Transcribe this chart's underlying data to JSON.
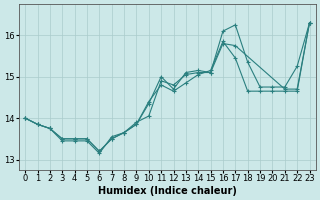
{
  "title": "",
  "xlabel": "Humidex (Indice chaleur)",
  "ylabel": "",
  "bg_color": "#cce8e8",
  "grid_color": "#aacccc",
  "line_color": "#2a7f7f",
  "xlim": [
    -0.5,
    23.5
  ],
  "ylim": [
    12.75,
    16.75
  ],
  "xticks": [
    0,
    1,
    2,
    3,
    4,
    5,
    6,
    7,
    8,
    9,
    10,
    11,
    12,
    13,
    14,
    15,
    16,
    17,
    18,
    19,
    20,
    21,
    22,
    23
  ],
  "yticks": [
    13,
    14,
    15,
    16
  ],
  "line1_x": [
    0,
    1,
    2,
    3,
    4,
    5,
    6,
    7,
    8,
    9,
    10,
    11,
    12,
    13,
    14,
    15,
    16,
    17,
    21,
    22,
    23
  ],
  "line1_y": [
    14.0,
    13.85,
    13.75,
    13.45,
    13.45,
    13.45,
    13.15,
    13.55,
    13.65,
    13.9,
    14.05,
    14.9,
    14.8,
    15.05,
    15.1,
    15.1,
    15.8,
    15.75,
    14.7,
    14.7,
    16.3
  ],
  "line2_x": [
    0,
    1,
    2,
    3,
    4,
    5,
    6,
    7,
    8,
    9,
    10,
    11,
    12,
    13,
    14,
    15,
    16,
    17,
    18,
    19,
    20,
    21,
    22,
    23
  ],
  "line2_y": [
    14.0,
    13.85,
    13.75,
    13.5,
    13.5,
    13.5,
    13.2,
    13.5,
    13.65,
    13.85,
    14.4,
    14.8,
    14.65,
    14.85,
    15.05,
    15.15,
    15.85,
    15.45,
    14.65,
    14.65,
    14.65,
    14.65,
    14.65,
    16.3
  ],
  "line3_x": [
    0,
    1,
    2,
    3,
    4,
    5,
    6,
    7,
    8,
    9,
    10,
    11,
    12,
    13,
    14,
    15,
    16,
    17,
    18,
    19,
    20,
    21,
    22,
    23
  ],
  "line3_y": [
    14.0,
    13.85,
    13.75,
    13.5,
    13.5,
    13.5,
    13.2,
    13.5,
    13.65,
    13.85,
    14.35,
    15.0,
    14.7,
    15.1,
    15.15,
    15.1,
    16.1,
    16.25,
    15.35,
    14.75,
    14.75,
    14.75,
    15.25,
    16.3
  ],
  "marker": "+",
  "markersize": 3,
  "linewidth": 0.8,
  "xlabel_fontsize": 7,
  "tick_fontsize": 6
}
